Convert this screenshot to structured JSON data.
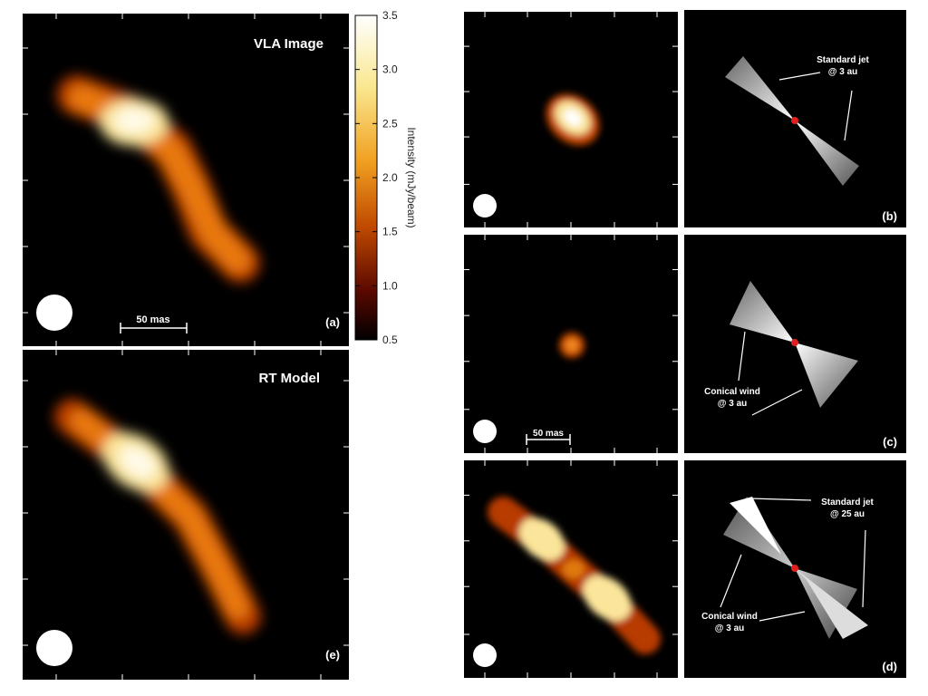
{
  "left_panels": {
    "a": {
      "title": "VLA Image",
      "tag": "(a)",
      "scale_bar": "50 mas"
    },
    "e": {
      "title": "RT Model",
      "tag": "(e)"
    }
  },
  "colorbar": {
    "label": "Intensity (mJy/beam)",
    "ticks": [
      "3.5",
      "3.0",
      "2.5",
      "2.0",
      "1.5",
      "1.0",
      "0.5"
    ]
  },
  "right_panels": {
    "b": {
      "tag": "(b)",
      "annotation": [
        "Standard jet",
        "@ 3 au"
      ]
    },
    "c": {
      "tag": "(c)",
      "scale_bar": "50 mas",
      "annotation": [
        "Conical wind",
        "@ 3 au"
      ]
    },
    "d": {
      "tag": "(d)",
      "annotations": [
        [
          "Standard jet",
          "@ 25 au"
        ],
        [
          "Conical wind",
          "@ 3 au"
        ]
      ]
    }
  }
}
